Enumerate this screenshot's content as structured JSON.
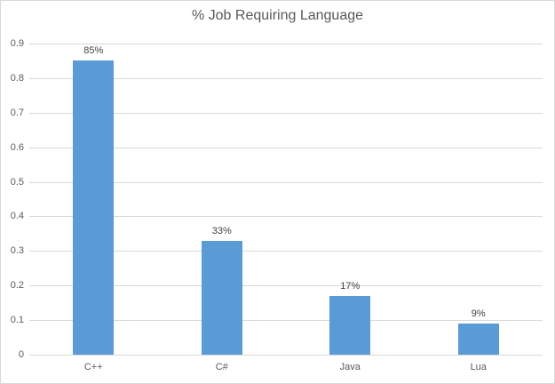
{
  "chart_data": {
    "type": "bar",
    "title": "% Job Requiring Language",
    "categories": [
      "C++",
      "C#",
      "Java",
      "Lua"
    ],
    "values": [
      0.85,
      0.33,
      0.17,
      0.09
    ],
    "data_labels": [
      "85%",
      "33%",
      "17%",
      "9%"
    ],
    "ylim": [
      0,
      0.9
    ],
    "ytick_step": 0.1,
    "ytick_labels": [
      "0",
      "0.1",
      "0.2",
      "0.3",
      "0.4",
      "0.5",
      "0.6",
      "0.7",
      "0.8",
      "0.9"
    ],
    "xlabel": "",
    "ylabel": "",
    "grid": true,
    "legend": false,
    "colors": {
      "bar": "#5b9bd5",
      "gridline": "#d9d9d9",
      "axis_line": "#d9d9d9",
      "border": "#d9d9d9",
      "background": "#ffffff",
      "title_text": "#595959",
      "tick_text": "#595959",
      "data_label_text": "#404040"
    }
  }
}
